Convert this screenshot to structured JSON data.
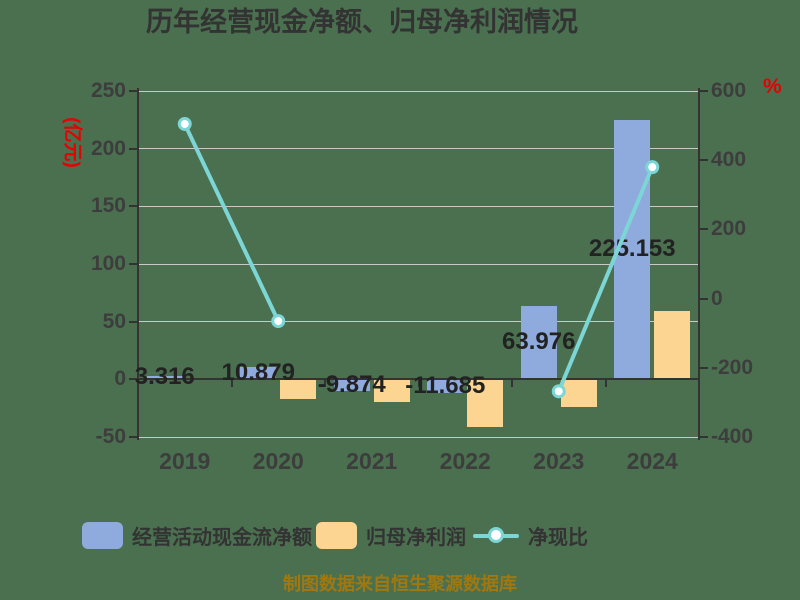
{
  "title": "历年经营现金净额、归母净利润情况",
  "caption": "制图数据来自恒生聚源数据库",
  "colors": {
    "background": "#4A7050",
    "bar_cashflow": "#8FAADC",
    "bar_profit": "#FCD593",
    "line_ratio": "#7CD6D6",
    "marker_fill": "#FFFFFF",
    "axis_text": "#3D3D3D",
    "axis_unit_red": "#E60000",
    "grid_line": "#C9C9C9",
    "axis_line": "#333333",
    "value_label": "#222222",
    "caption_text": "#A0780F"
  },
  "left_axis": {
    "unit": "(亿元)",
    "ticks": [
      250,
      200,
      150,
      100,
      50,
      0,
      -50
    ],
    "min": -50,
    "max": 250
  },
  "right_axis": {
    "unit": "%",
    "ticks": [
      600,
      400,
      200,
      0,
      -200,
      -400
    ],
    "min": -400,
    "max": 600
  },
  "legend": [
    {
      "label": "经营活动现金流净额",
      "swatch": "blue-bar"
    },
    {
      "label": "归母净利润",
      "swatch": "orange-bar"
    },
    {
      "label": "净现比",
      "swatch": "line-marker"
    }
  ],
  "chart_data": {
    "type": "bar+line",
    "title": "历年经营现金净额、归母净利润情况",
    "categories": [
      "2019",
      "2020",
      "2021",
      "2022",
      "2023",
      "2024"
    ],
    "series": [
      {
        "name": "经营活动现金流净额",
        "type": "bar",
        "axis": "left",
        "color": "#8FAADC",
        "values": [
          3.316,
          10.879,
          -9.874,
          -11.685,
          63.976,
          225.153
        ],
        "labels": [
          "3.316",
          "10.879",
          "-9.874",
          "-11.685",
          "63.976",
          "225.153"
        ]
      },
      {
        "name": "归母净利润",
        "type": "bar",
        "axis": "left",
        "color": "#FCD593",
        "values": [
          0.66,
          -16.7,
          -19.6,
          -41.5,
          -23.9,
          59.2
        ]
      },
      {
        "name": "净现比",
        "type": "line",
        "axis": "right",
        "color": "#7CD6D6",
        "values": [
          504.7,
          -65,
          null,
          null,
          -268,
          380
        ]
      }
    ],
    "ylabel_left": "(亿元)",
    "ylabel_right": "%",
    "ylim_left": [
      -50,
      250
    ],
    "ylim_right": [
      -400,
      600
    ],
    "grid": true,
    "legend_position": "bottom"
  }
}
